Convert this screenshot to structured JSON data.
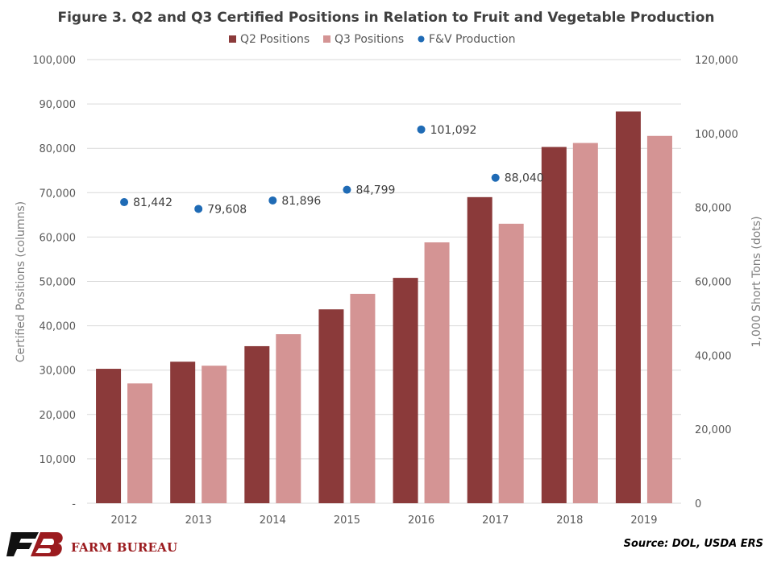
{
  "chart_data": {
    "type": "bar",
    "title": "Figure 3. Q2 and Q3 Certified Positions in Relation to Fruit and Vegetable Production",
    "categories": [
      "2012",
      "2013",
      "2014",
      "2015",
      "2016",
      "2017",
      "2018",
      "2019"
    ],
    "series": [
      {
        "name": "Q2 Positions",
        "type": "bar",
        "axis": "left",
        "color": "#8b3a3a",
        "values": [
          30300,
          31900,
          35400,
          43700,
          50800,
          69000,
          80300,
          88300
        ]
      },
      {
        "name": "Q3 Positions",
        "type": "bar",
        "axis": "left",
        "color": "#d49494",
        "values": [
          27000,
          31000,
          38100,
          47200,
          58800,
          63000,
          81200,
          82800
        ]
      },
      {
        "name": "F&V Production",
        "type": "scatter",
        "axis": "right",
        "color": "#1f6bb5",
        "values": [
          81442,
          79608,
          81896,
          84799,
          101092,
          88040
        ],
        "labels": [
          "81,442",
          "79,608",
          "81,896",
          "84,799",
          "101,092",
          "88,040"
        ]
      }
    ],
    "ylabel": "Certified Positions (columns)",
    "y2label": "1,000 Short Tons (dots)",
    "ylim": [
      0,
      100000
    ],
    "y2lim": [
      0,
      120000
    ],
    "yticks": [
      "-",
      "10,000",
      "20,000",
      "30,000",
      "40,000",
      "50,000",
      "60,000",
      "70,000",
      "80,000",
      "90,000",
      "100,000"
    ],
    "y2ticks": [
      "0",
      "20,000",
      "40,000",
      "60,000",
      "80,000",
      "100,000",
      "120,000"
    ],
    "grid": true,
    "legend": "top-center"
  },
  "footer": {
    "logo_text": "FARM BUREAU",
    "source": "Source: DOL, USDA ERS"
  }
}
